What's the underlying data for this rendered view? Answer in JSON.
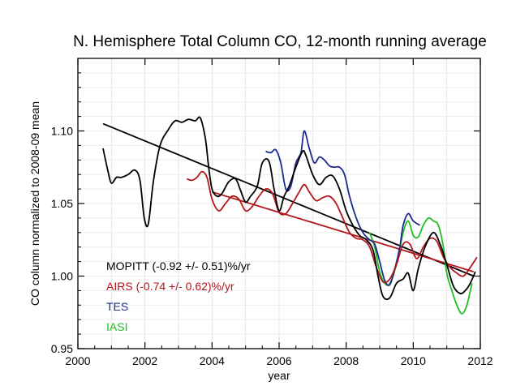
{
  "chart_data": {
    "type": "line",
    "title": "N. Hemisphere Total Column CO, 12-month running average",
    "xlabel": "year",
    "ylabel": "CO column normalized to 2008-09 mean",
    "xlim": [
      2000,
      2012
    ],
    "ylim": [
      0.95,
      1.15
    ],
    "xticks": [
      2000,
      2002,
      2004,
      2006,
      2008,
      2010,
      2012
    ],
    "yticks": [
      0.95,
      1.0,
      1.05,
      1.1
    ],
    "ytick_labels": [
      "0.95",
      "1.00",
      "1.05",
      "1.10"
    ],
    "grid": true,
    "legend_position": "bottom-left",
    "series": [
      {
        "name": "MOPITT (-0.92 +/- 0.51)%/yr",
        "color": "#000000",
        "x": [
          2000.75,
          2000.9,
          2001.0,
          2001.15,
          2001.3,
          2001.5,
          2001.7,
          2001.85,
          2001.98,
          2002.1,
          2002.25,
          2002.45,
          2002.7,
          2002.9,
          2003.1,
          2003.3,
          2003.5,
          2003.65,
          2003.8,
          2003.9,
          2004.0,
          2004.15,
          2004.3,
          2004.5,
          2004.7,
          2004.85,
          2005.0,
          2005.15,
          2005.35,
          2005.5,
          2005.7,
          2005.85,
          2006.0,
          2006.15,
          2006.3,
          2006.5,
          2006.7,
          2006.8,
          2007.0,
          2007.2,
          2007.4,
          2007.6,
          2007.8,
          2008.0,
          2008.2,
          2008.4,
          2008.6,
          2008.8,
          2008.95,
          2009.1,
          2009.3,
          2009.5,
          2009.7,
          2009.85,
          2010.0,
          2010.15,
          2010.35,
          2010.6,
          2010.8,
          2011.0,
          2011.2,
          2011.4,
          2011.55,
          2011.7,
          2011.85
        ],
        "y": [
          1.088,
          1.072,
          1.064,
          1.068,
          1.068,
          1.07,
          1.073,
          1.066,
          1.04,
          1.036,
          1.065,
          1.09,
          1.101,
          1.107,
          1.106,
          1.108,
          1.107,
          1.109,
          1.095,
          1.075,
          1.06,
          1.055,
          1.057,
          1.065,
          1.067,
          1.059,
          1.051,
          1.055,
          1.062,
          1.078,
          1.079,
          1.06,
          1.045,
          1.055,
          1.062,
          1.075,
          1.086,
          1.083,
          1.07,
          1.063,
          1.068,
          1.069,
          1.06,
          1.045,
          1.035,
          1.028,
          1.025,
          1.018,
          1.0,
          0.986,
          0.985,
          0.995,
          0.998,
          1.002,
          0.99,
          1.005,
          1.02,
          1.03,
          1.022,
          1.008,
          0.993,
          0.988,
          0.99,
          0.995,
          1.003
        ]
      },
      {
        "name": "AIRS (-0.74 +/- 0.62)%/yr",
        "color": "#b3161b",
        "x": [
          2003.25,
          2003.4,
          2003.55,
          2003.7,
          2003.85,
          2004.0,
          2004.2,
          2004.4,
          2004.6,
          2004.8,
          2005.0,
          2005.2,
          2005.4,
          2005.6,
          2005.8,
          2006.0,
          2006.2,
          2006.4,
          2006.6,
          2006.75,
          2006.9,
          2007.1,
          2007.3,
          2007.5,
          2007.7,
          2007.9,
          2008.1,
          2008.3,
          2008.5,
          2008.7,
          2008.9,
          2009.1,
          2009.3,
          2009.5,
          2009.7,
          2009.9,
          2010.1,
          2010.3,
          2010.5,
          2010.7,
          2010.9,
          2011.1,
          2011.3,
          2011.5,
          2011.7,
          2011.9
        ],
        "y": [
          1.067,
          1.066,
          1.068,
          1.072,
          1.068,
          1.053,
          1.045,
          1.05,
          1.055,
          1.053,
          1.045,
          1.048,
          1.055,
          1.06,
          1.057,
          1.044,
          1.043,
          1.05,
          1.058,
          1.063,
          1.058,
          1.052,
          1.054,
          1.055,
          1.05,
          1.04,
          1.03,
          1.026,
          1.025,
          1.02,
          1.006,
          0.996,
          0.998,
          1.008,
          1.022,
          1.022,
          1.012,
          1.02,
          1.026,
          1.024,
          1.013,
          1.006,
          1.002,
          1.0,
          1.006,
          1.013
        ]
      },
      {
        "name": "TES",
        "color": "#1f2a8f",
        "x": [
          2005.6,
          2005.75,
          2005.9,
          2006.05,
          2006.2,
          2006.35,
          2006.5,
          2006.65,
          2006.75,
          2006.9,
          2007.05,
          2007.2,
          2007.35,
          2007.5,
          2007.65,
          2007.8,
          2007.95,
          2008.1,
          2008.3,
          2008.5,
          2008.7,
          2008.85,
          2009.0,
          2009.15,
          2009.3,
          2009.45,
          2009.6,
          2009.7,
          2009.85,
          2010.0,
          2010.2
        ],
        "y": [
          1.086,
          1.085,
          1.087,
          1.078,
          1.06,
          1.062,
          1.078,
          1.085,
          1.1,
          1.088,
          1.078,
          1.082,
          1.08,
          1.076,
          1.075,
          1.075,
          1.07,
          1.055,
          1.04,
          1.03,
          1.025,
          1.022,
          1.01,
          0.997,
          0.994,
          1.005,
          1.02,
          1.035,
          1.043,
          1.038,
          1.035
        ]
      },
      {
        "name": "IASI",
        "color": "#1fbf1f",
        "x": [
          2008.7,
          2008.85,
          2009.0,
          2009.15,
          2009.3,
          2009.5,
          2009.7,
          2009.85,
          2010.0,
          2010.15,
          2010.3,
          2010.45,
          2010.6,
          2010.75,
          2010.9,
          2011.0,
          2011.15,
          2011.3,
          2011.45,
          2011.6,
          2011.75
        ],
        "y": [
          1.03,
          1.02,
          1.003,
          0.995,
          0.995,
          1.008,
          1.03,
          1.038,
          1.028,
          1.027,
          1.035,
          1.04,
          1.038,
          1.035,
          1.02,
          1.002,
          0.99,
          0.98,
          0.974,
          0.98,
          0.995
        ]
      }
    ],
    "trend_lines": [
      {
        "color": "#000000",
        "x": [
          2000.75,
          2011.8
        ],
        "y": [
          1.105,
          1.0
        ]
      },
      {
        "color": "#b3161b",
        "x": [
          2004.0,
          2011.8
        ],
        "y": [
          1.058,
          1.003
        ]
      }
    ]
  }
}
